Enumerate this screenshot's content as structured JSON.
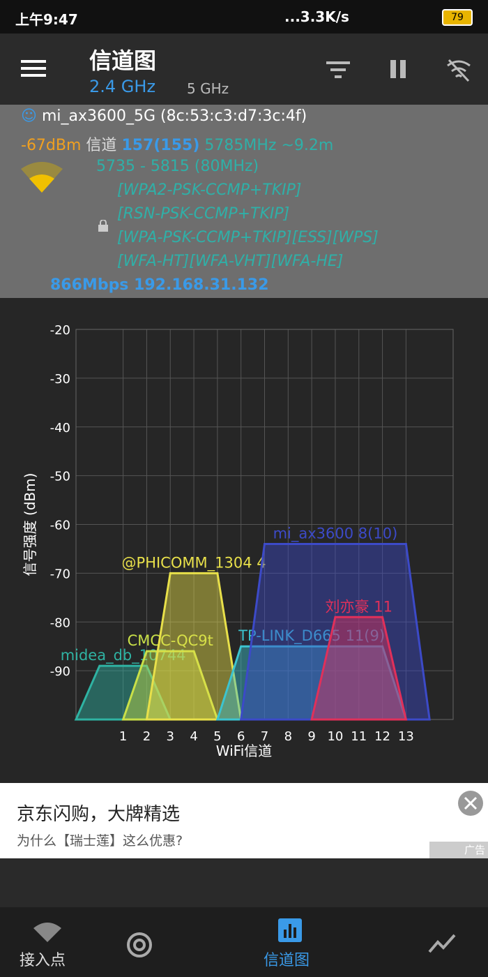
{
  "status_bar": {
    "time": "上午9:47",
    "speed": "...3.3K/s",
    "battery": "79"
  },
  "header": {
    "title": "信道图",
    "tabs": [
      "2.4 GHz",
      "5 GHz"
    ]
  },
  "connection": {
    "ssid": "mi_ax3600_5G (8c:53:c3:d7:3c:4f)",
    "signal": "-67dBm",
    "channel_label": "信道",
    "channel": "157(155)",
    "frequency": "5785MHz ~9.2m",
    "range": "5735 - 5815 (80MHz)",
    "capabilities": [
      "[WPA2-PSK-CCMP+TKIP]",
      "[RSN-PSK-CCMP+TKIP]",
      "[WPA-PSK-CCMP+TKIP][ESS][WPS]",
      "[WFA-HT][WFA-VHT][WFA-HE]"
    ],
    "speed_ip": "866Mbps 192.168.31.132"
  },
  "chart_data": {
    "type": "channel",
    "ylabel": "信号强度 (dBm)",
    "xlabel": "WiFi信道",
    "xlim": [
      -1,
      15
    ],
    "ylim": [
      -100,
      -20
    ],
    "xticks": [
      1,
      2,
      3,
      4,
      5,
      6,
      7,
      8,
      9,
      10,
      11,
      12,
      13
    ],
    "yticks": [
      -20,
      -30,
      -40,
      -50,
      -60,
      -70,
      -80,
      -90
    ],
    "grid": true,
    "series": [
      {
        "name": "midea_db_10744",
        "color": "#2fb3a3",
        "channel": 1,
        "bandwidth": 20,
        "value": -89
      },
      {
        "name": "CMCC-QC9t",
        "color": "#c9e048",
        "channel": 3,
        "bandwidth": 20,
        "value": -86
      },
      {
        "name": "@PHICOMM_1304 4",
        "color": "#e8e04a",
        "channel": 4,
        "bandwidth": 20,
        "value": -70
      },
      {
        "name": "TP-LINK_D665 11(9)",
        "color": "#3cc4d0",
        "channel": 9,
        "bandwidth": 40,
        "value": -85
      },
      {
        "name": "mi_ax3600 8(10)",
        "color": "#3c4ac8",
        "channel": 10,
        "bandwidth": 40,
        "value": -64
      },
      {
        "name": "刘亦豪 11",
        "color": "#e0305a",
        "channel": 11,
        "bandwidth": 20,
        "value": -79
      }
    ]
  },
  "ad": {
    "title": "京东闪购，大牌精选",
    "subtitle": "为什么【瑞士莲】这么优惠?",
    "tag": "广告"
  },
  "nav": {
    "access_points": "接入点",
    "channel_graph": "信道图"
  }
}
